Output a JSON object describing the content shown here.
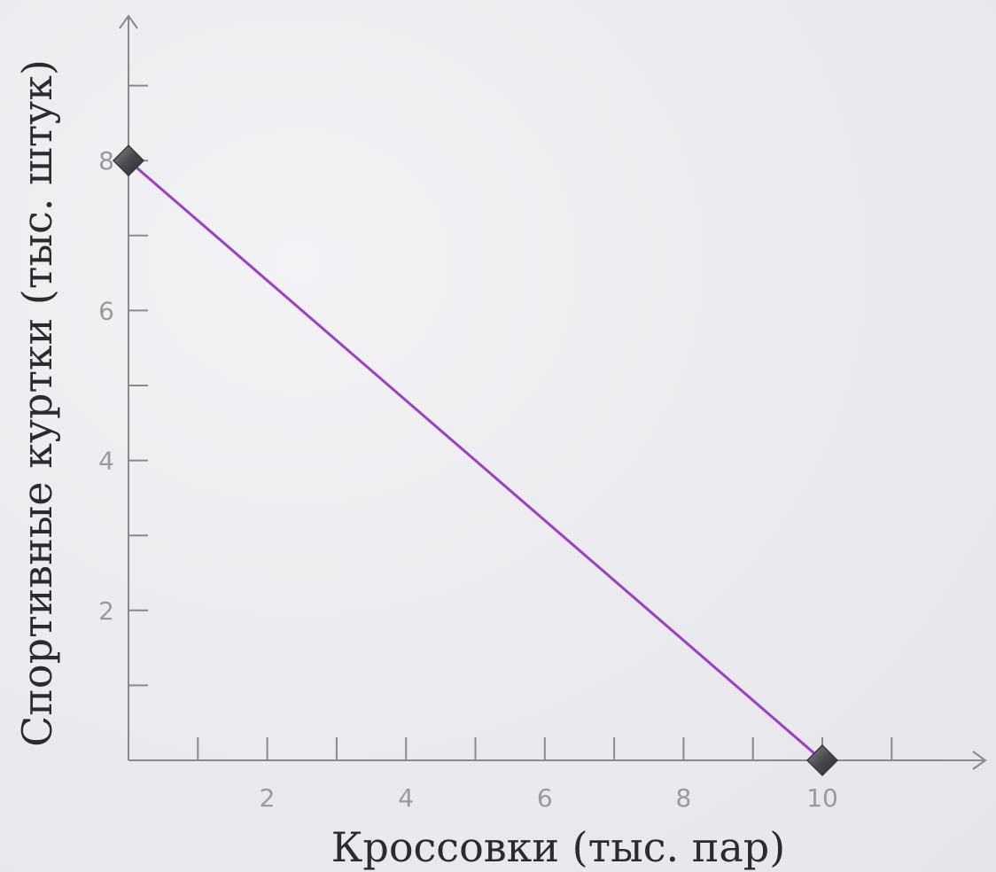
{
  "chart_data": {
    "type": "line",
    "title": "",
    "xlabel": "Кроссовки (тыс. пар)",
    "ylabel": "Спортивные куртки (тыс. штук)",
    "xlim": [
      0,
      11.5
    ],
    "ylim": [
      0,
      9.7
    ],
    "x_major_ticks": [
      2,
      4,
      6,
      8,
      10
    ],
    "x_minor_ticks": [
      1,
      3,
      5,
      7,
      9,
      11
    ],
    "y_major_ticks": [
      2,
      4,
      6,
      8
    ],
    "y_minor_ticks": [
      1,
      3,
      5,
      7,
      9
    ],
    "grid": false,
    "series": [
      {
        "x": [
          0,
          10
        ],
        "y": [
          8,
          0
        ],
        "color": "#9b3fc4",
        "marker": "diamond",
        "marker_color": "#4a4a4e"
      }
    ],
    "axis_color": "#8a8a8e"
  }
}
